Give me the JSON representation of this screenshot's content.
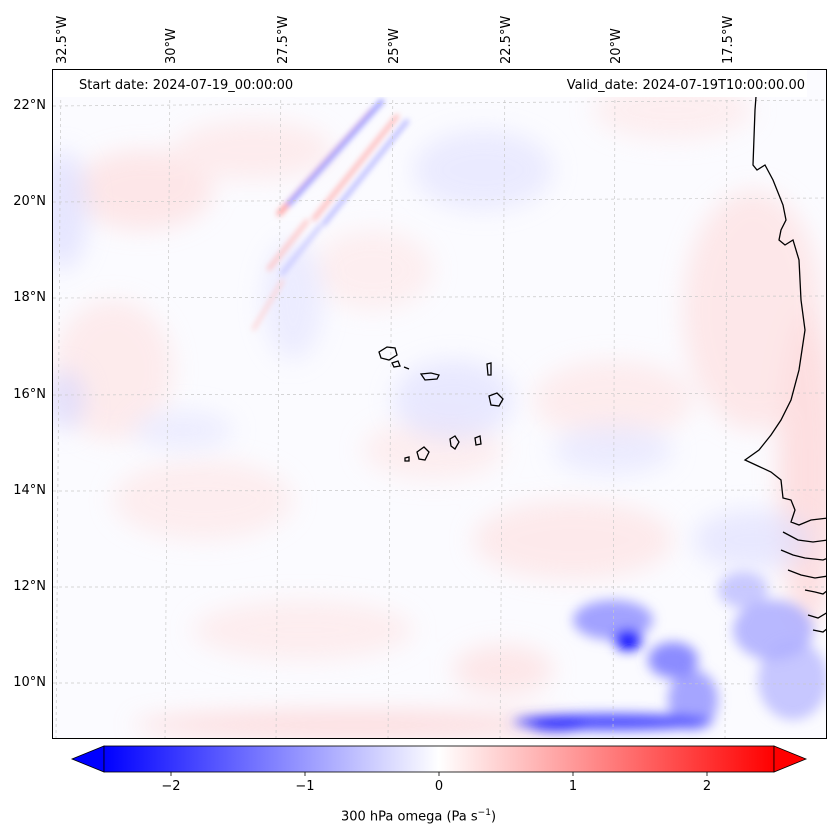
{
  "map": {
    "banner": {
      "start_date": "Start date: 2024-07-19_00:00:00",
      "valid_date": "Valid_date: 2024-07-19T10:00:00.00"
    },
    "lon_labels": [
      "32.5°W",
      "30°W",
      "27.5°W",
      "25°W",
      "22.5°W",
      "20°W",
      "17.5°W"
    ],
    "lat_labels": [
      "22°N",
      "20°N",
      "18°N",
      "16°N",
      "14°N",
      "12°N",
      "10°N"
    ],
    "colors": {
      "negative": "#0000ff",
      "positive": "#ff0000",
      "neutral": "#ffffff",
      "coast": "#000000"
    }
  },
  "colorbar": {
    "ticks": [
      "−2",
      "−1",
      "0",
      "1",
      "2"
    ],
    "label_main": "300 hPa omega (Pa s",
    "label_exp": "−1",
    "label_end": ")"
  }
}
